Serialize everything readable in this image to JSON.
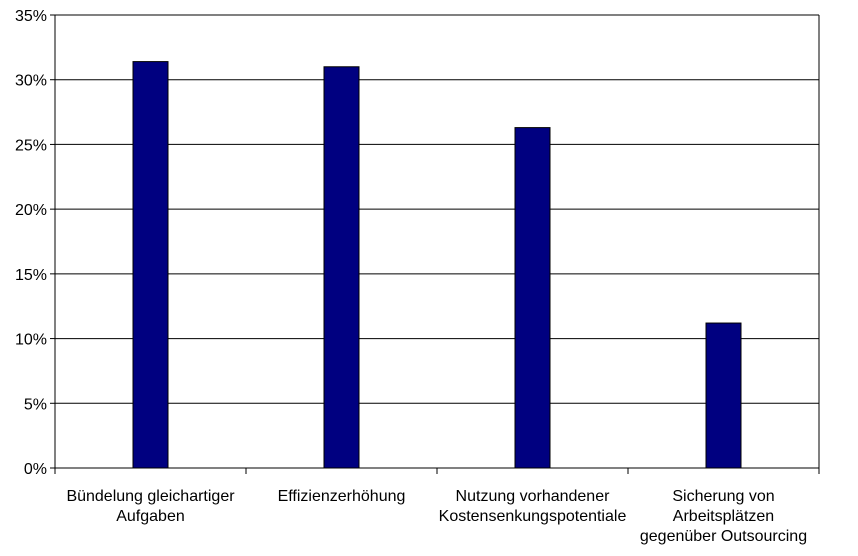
{
  "chart_data": {
    "type": "bar",
    "title": "",
    "xlabel": "",
    "ylabel": "",
    "categories": [
      [
        "Bündelung gleichartiger",
        "Aufgaben"
      ],
      [
        "Effizienzerhöhung"
      ],
      [
        "Nutzung vorhandener",
        "Kostensenkungspotentiale"
      ],
      [
        "Sicherung von",
        "Arbeitsplätzen",
        "gegenüber Outsourcing"
      ]
    ],
    "values": [
      31.4,
      31.0,
      26.3,
      11.2
    ],
    "ylim": [
      0,
      35
    ],
    "yticks": [
      "0%",
      "5%",
      "10%",
      "15%",
      "20%",
      "25%",
      "30%",
      "35%"
    ],
    "grid": true,
    "legend": "none",
    "bar_color": "#000080"
  }
}
